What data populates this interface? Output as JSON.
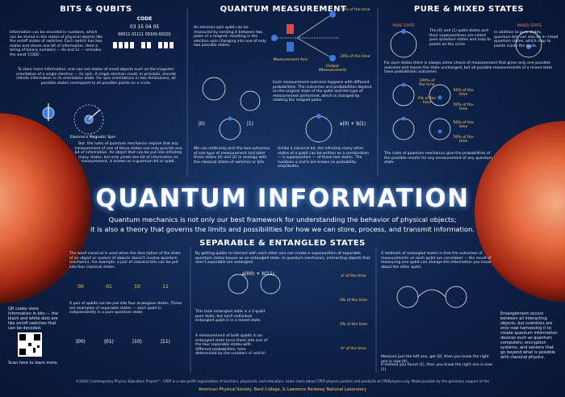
{
  "header": {
    "title": "QUANTUM INFORMATION",
    "subtitle": [
      "Quantum mechanics is not only our best framework for understanding the behavior of physical objects;",
      "it is also a theory that governs the limits and possibilities for how we can store, process, and transmit information."
    ]
  },
  "bits_qubits": {
    "title": "BITS & QUBITS",
    "p1": "Information can be encoded in numbers, which can be stored in the states of physical objects like the on/off states of switches. Each switch has two states and stores one bit of information. Here a string of binary numbers — 0s and 1s — encodes the word 'CODE'.",
    "code_word": "CODE",
    "code_numbers": "03 15 04 05",
    "code_binary": "00011 01111 00100 00101",
    "p2": "To store more information, one can use states of small objects such as the magnetic orientation of a single electron — its spin. A single electron could, in principle, encode infinite information in its orientation state. For spin orientations in two dimensions, all possible states correspond to all possible points on a circle.",
    "spin_caption": "Electron's Magnetic Spin",
    "p3": "But, the rules of quantum mechanics require that any measurement of one of these states can only provide one bit of information. An object that can be put into infinitely many states, but only yields one bit of information on measurement, is known as a quantum bit or qubit."
  },
  "measurement": {
    "title": "QUANTUM MEASUREMENT",
    "p1": "An electron-spin qubit can be measured by sending it between two poles of a magnet, resulting in the electron spin changing into one of only two possible states.",
    "axis_label": "Measurement Axis",
    "output_label": "Output (Measurement)",
    "prob_top": "70% of the time",
    "prob_bottom": "30% of the time",
    "p2": "Each measurement outcome happens with different probabilities. The outcomes and probabilities depend on the original state of the qubit and the type of measurement performed, which is changed by rotating the magnet poles.",
    "ket0": "|0⟩",
    "ket1": "|1⟩",
    "superposition": "a|0⟩ + b|1⟩",
    "p3": "We can arbitrarily pick the two outcomes of one type of measurement and label these states |0⟩ and |1⟩ in analogy with the classical states of switches or bits.",
    "p4": "Unlike a classical bit, the infinitely many other states of a qubit can be written as a combination — a superposition — of these two states. The numbers a and b are known as probability amplitudes."
  },
  "pure_mixed": {
    "title": "PURE & MIXED STATES",
    "pure_label": "PURE STATE",
    "mixed_label": "MIXED STATE",
    "p1": "The |0⟩ and |1⟩ qubit states and their superpositions are called pure quantum states and map to points on the circle.",
    "p2": "In addition to pure states, quantum bits can also be in mixed quantum states, which map to points inside the circle.",
    "p3": "For pure states there is always some choice of measurement that gives only one possible outcome and leaves the state unchanged, but all possible measurements of a mixed state have probabilistic outcomes.",
    "probs": [
      "100% of the time",
      "0% of the time",
      "50% of the time",
      "50% of the time",
      "50% of the time",
      "50% of the time"
    ],
    "p4": "The rules of quantum mechanics give the probabilities of the possible results for any measurement of any quantum state."
  },
  "entangled": {
    "title": "SEPARABLE & ENTANGLED STATES",
    "p1": "The word classical is used when the description of the state of an object or system of objects doesn't involve quantum mechanics. For example, a pair of classical bits can be put into four classical states.",
    "classical": [
      "00",
      "01",
      "10",
      "11"
    ],
    "p2": "A pair of qubits can be put into four analogous states. These are examples of separable states — each qubit is independently in a pure quantum state.",
    "kets": [
      "|00⟩",
      "|01⟩",
      "|10⟩",
      "|11⟩"
    ],
    "p3": "By getting qubits to interact with each other one can create a superposition of separable quantum states known as an entangled state. In quantum mechanics, interacting objects that aren't separable are entangled.",
    "state": "a|00⟩ + b|11⟩",
    "probs": [
      "a² of the time",
      "0% of the time",
      "0% of the time",
      "b² of the time"
    ],
    "p4": "This total entangled state is a 2-qubit pure state, but each individual entangled qubit is in a mixed state.",
    "p5": "A measurement of both qubits in an entangled state turns them into one of the four separable states with different probabilities, here determined by the numbers a² and b².",
    "p6": "A hallmark of entangled states is that the outcomes of measurements on each qubit are correlated — the result of measuring one qubit can change the information you know about the other qubit.",
    "measure1": "Measure just the left one, get |0⟩, then you know the right one is now |0⟩.",
    "measure2": "If instead you found |1⟩, then you know the right one is now |1⟩."
  },
  "sidebar_left": {
    "qr_text": "QR codes store information in bits — the black and white dots are like on/off switches that can be decoded.",
    "scan": "Scan here to learn more."
  },
  "sidebar_right": {
    "text": "Entanglement occurs between all interacting objects, but scientists are only now harnessing it to create quantum information devices such as quantum computers, encryption systems, and sensors that go beyond what is possible with classical physics."
  },
  "footer": {
    "line1": "©2024 Contemporary Physics Education Project™. CPEP is a non-profit organization of teachers, physicists, and educators. Learn more about CPEP physics posters and products at CPEPphysics.org. Made possible by the generous support of the",
    "line2": "American Physical Society, Bard College, & Lawrence Berkeley National Laboratory"
  }
}
